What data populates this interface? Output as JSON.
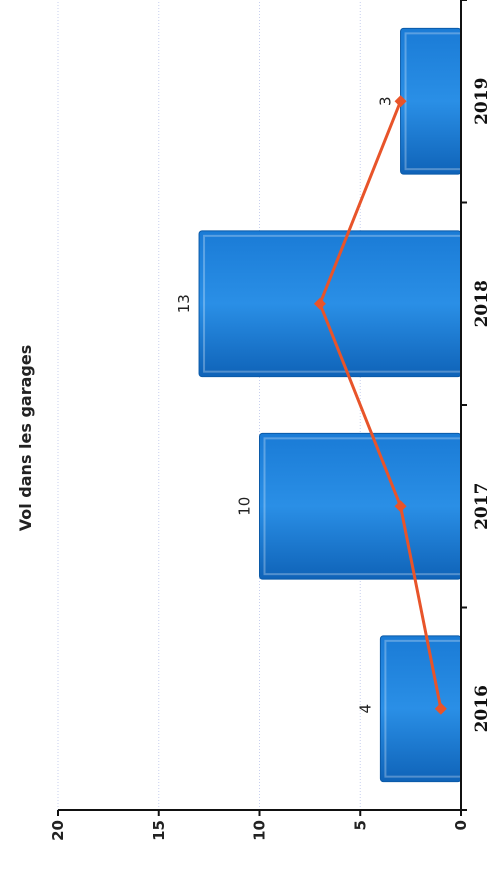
{
  "chart_data": {
    "type": "bar",
    "title": "Vol dans les garages",
    "categories": [
      "2016",
      "2017",
      "2018",
      "2019"
    ],
    "values": [
      4,
      10,
      13,
      3
    ],
    "line_values": [
      1,
      3,
      7,
      3
    ],
    "ylim": [
      0,
      20
    ],
    "yticks": [
      "0",
      "5",
      "10",
      "15",
      "20"
    ],
    "grid": true,
    "legend": "none",
    "bar_color": "#1e88e5",
    "line_color": "#e8542a"
  }
}
